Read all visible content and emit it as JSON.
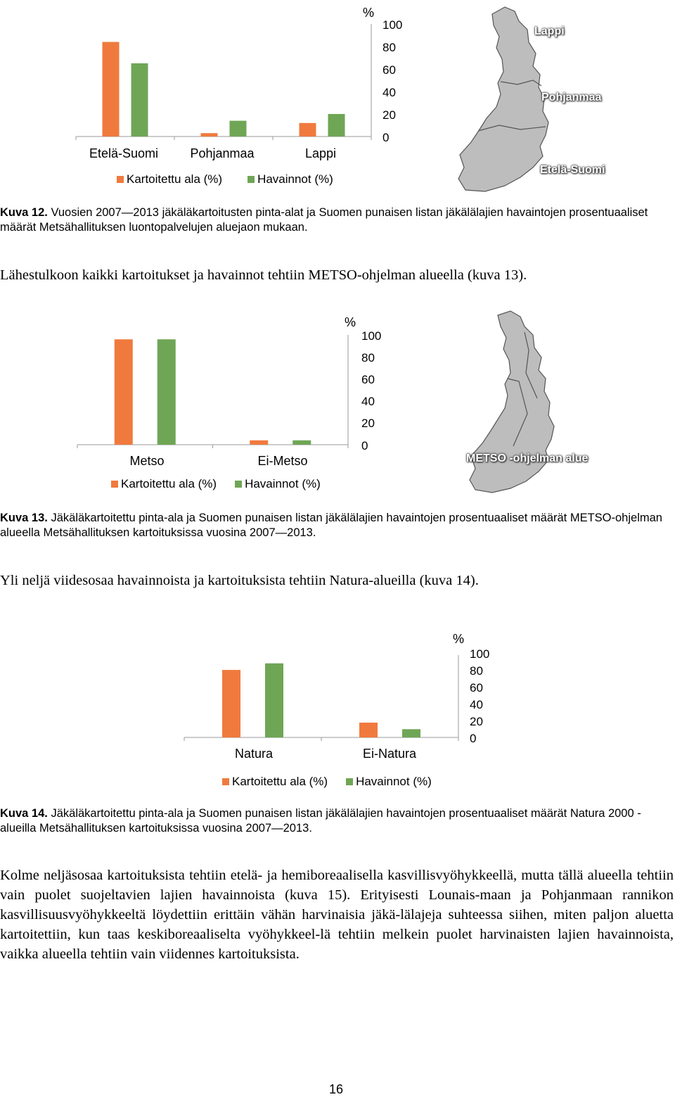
{
  "colors": {
    "orange": "#F07A3E",
    "green": "#6FA655",
    "axis": "#9a9a9a",
    "map": "#bdbdbd",
    "map_border": "#555555"
  },
  "legend": {
    "a": "Kartoitettu ala (%)",
    "b": "Havainnot (%)"
  },
  "fig12": {
    "chart_data": {
      "type": "bar",
      "categories": [
        "Etelä-Suomi",
        "Pohjanmaa",
        "Lappi"
      ],
      "series": [
        {
          "name": "Kartoitettu ala (%)",
          "values": [
            84,
            3,
            12
          ]
        },
        {
          "name": "Havainnot (%)",
          "values": [
            65,
            14,
            20
          ]
        }
      ],
      "ylim": [
        0,
        100
      ],
      "yticks": [
        "100",
        "80",
        "60",
        "40",
        "20",
        "0"
      ],
      "unit": "%"
    },
    "map_labels": [
      "Lappi",
      "Pohjanmaa",
      "Etelä-Suomi"
    ],
    "caption_bold": "Kuva 12.",
    "caption_text": "Vuosien 2007—2013 jäkäläkartoitusten pinta-alat ja Suomen punaisen listan jäkälälajien havaintojen prosentuaaliset määrät Metsähallituksen luontopalvelujen aluejaon mukaan."
  },
  "para1": "Lähestulkoon kaikki kartoitukset ja havainnot tehtiin METSO-ohjelman alueella (kuva 13).",
  "fig13": {
    "chart_data": {
      "type": "bar",
      "categories": [
        "Metso",
        "Ei-Metso"
      ],
      "series": [
        {
          "name": "Kartoitettu ala (%)",
          "values": [
            96,
            4
          ]
        },
        {
          "name": "Havainnot (%)",
          "values": [
            96,
            4
          ]
        }
      ],
      "ylim": [
        0,
        100
      ],
      "yticks": [
        "100",
        "80",
        "60",
        "40",
        "20",
        "0"
      ],
      "unit": "%"
    },
    "map_labels": [
      "METSO -ohjelman alue"
    ],
    "caption_bold": "Kuva 13.",
    "caption_text": "Jäkäläkartoitettu pinta-ala ja Suomen punaisen listan jäkälälajien havaintojen prosentuaaliset määrät METSO-ohjelman alueella Metsähallituksen kartoituksissa vuosina 2007—2013."
  },
  "para2": "Yli neljä viidesosaa havainnoista ja kartoituksista tehtiin Natura-alueilla (kuva 14).",
  "fig14": {
    "chart_data": {
      "type": "bar",
      "categories": [
        "Natura",
        "Ei-Natura"
      ],
      "series": [
        {
          "name": "Kartoitettu ala (%)",
          "values": [
            82,
            18
          ]
        },
        {
          "name": "Havainnot (%)",
          "values": [
            90,
            10
          ]
        }
      ],
      "ylim": [
        0,
        100
      ],
      "yticks": [
        "100",
        "80",
        "60",
        "40",
        "20",
        "0"
      ],
      "unit": "%"
    },
    "caption_bold": "Kuva 14.",
    "caption_text": "Jäkäläkartoitettu pinta-ala ja Suomen punaisen listan jäkälälajien havaintojen prosentuaaliset määrät Natura 2000 -alueilla Metsähallituksen kartoituksissa vuosina 2007—2013."
  },
  "para3": "Kolme neljäsosaa kartoituksista tehtiin etelä- ja hemiboreaalisella kasvillisvyöhykkeellä, mutta tällä alueella tehtiin vain puolet suojeltavien lajien havainnoista (kuva 15). Erityisesti Lounais-maan ja Pohjanmaan rannikon kasvillisuusvyöhykkeeltä löydettiin erittäin vähän harvinaisia jäkä-lälajeja suhteessa siihen, miten paljon aluetta kartoitettiin, kun taas keskiboreaaliselta vyöhykkeel-lä tehtiin melkein puolet harvinaisten lajien havainnoista, vaikka alueella tehtiin vain viidennes kartoituksista.",
  "page_number": "16"
}
